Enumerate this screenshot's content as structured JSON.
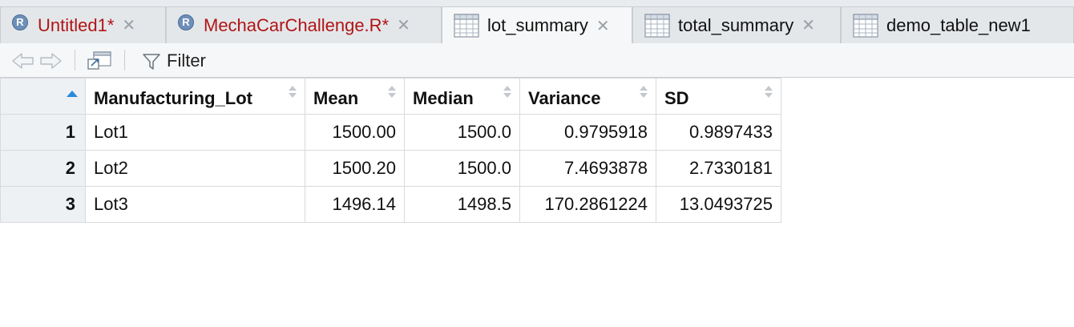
{
  "tabs": [
    {
      "label": "Untitled1*",
      "icon": "r-file-icon",
      "modified": true
    },
    {
      "label": "MechaCarChallenge.R*",
      "icon": "r-file-icon",
      "modified": true
    },
    {
      "label": "lot_summary",
      "icon": "data-grid-icon",
      "modified": false,
      "active": true
    },
    {
      "label": "total_summary",
      "icon": "data-grid-icon",
      "modified": false
    },
    {
      "label": "demo_table_new1",
      "icon": "data-grid-icon",
      "modified": false
    }
  ],
  "close_glyph": "✕",
  "r_glyph": "R",
  "toolbar": {
    "filter_label": "Filter"
  },
  "table": {
    "columns": [
      "Manufacturing_Lot",
      "Mean",
      "Median",
      "Variance",
      "SD"
    ],
    "rows": [
      {
        "n": "1",
        "cells": [
          "Lot1",
          "1500.00",
          "1500.0",
          "0.9795918",
          "0.9897433"
        ]
      },
      {
        "n": "2",
        "cells": [
          "Lot2",
          "1500.20",
          "1500.0",
          "7.4693878",
          "2.7330181"
        ]
      },
      {
        "n": "3",
        "cells": [
          "Lot3",
          "1496.14",
          "1498.5",
          "170.2861224",
          "13.0493725"
        ]
      }
    ]
  },
  "colors": {
    "modified_text": "#b01515",
    "sort_accent": "#2a8bd8"
  }
}
